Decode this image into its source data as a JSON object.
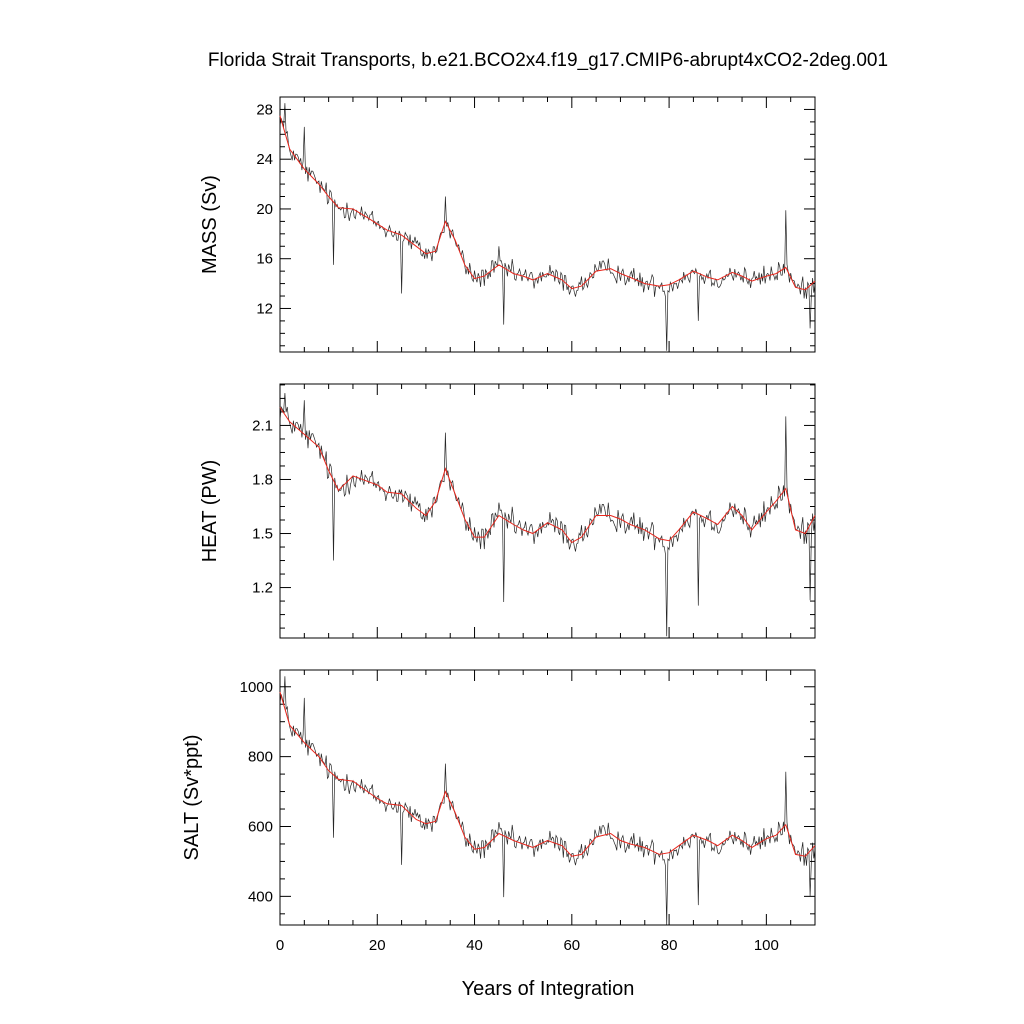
{
  "chart_data": [
    {
      "type": "line",
      "title": "Florida Strait Transports, b.e21.BCO2x4.f19_g17.CMIP6-abrupt4xCO2-2deg.001",
      "ylabel": "MASS (Sv)",
      "xlabel": "",
      "xlim": [
        0,
        110
      ],
      "ylim": [
        8.5,
        29
      ],
      "yticks": [
        12,
        16,
        20,
        24,
        28
      ],
      "xticks": [
        0,
        20,
        40,
        60,
        80,
        100
      ],
      "series": [
        {
          "name": "annual",
          "color": "#000000"
        },
        {
          "name": "running mean",
          "color": "#e8261c"
        }
      ],
      "smooth_points": [
        [
          0,
          27.5
        ],
        [
          2,
          24.8
        ],
        [
          5,
          23.2
        ],
        [
          8,
          22.0
        ],
        [
          10,
          21.0
        ],
        [
          12,
          20.1
        ],
        [
          15,
          20.0
        ],
        [
          18,
          19.3
        ],
        [
          20,
          18.8
        ],
        [
          22,
          18.3
        ],
        [
          25,
          17.9
        ],
        [
          28,
          17.0
        ],
        [
          30,
          16.4
        ],
        [
          32,
          16.6
        ],
        [
          34,
          19.0
        ],
        [
          36,
          17.5
        ],
        [
          38,
          15.5
        ],
        [
          40,
          14.4
        ],
        [
          42,
          14.6
        ],
        [
          45,
          15.5
        ],
        [
          48,
          14.8
        ],
        [
          50,
          14.6
        ],
        [
          52,
          14.3
        ],
        [
          55,
          14.8
        ],
        [
          58,
          14.3
        ],
        [
          60,
          13.6
        ],
        [
          62,
          13.8
        ],
        [
          65,
          15.0
        ],
        [
          68,
          15.2
        ],
        [
          70,
          14.8
        ],
        [
          72,
          14.5
        ],
        [
          75,
          14.0
        ],
        [
          78,
          13.8
        ],
        [
          80,
          13.9
        ],
        [
          82,
          14.3
        ],
        [
          85,
          15.0
        ],
        [
          88,
          14.5
        ],
        [
          90,
          14.3
        ],
        [
          93,
          14.9
        ],
        [
          95,
          14.6
        ],
        [
          97,
          14.2
        ],
        [
          100,
          14.6
        ],
        [
          102,
          14.8
        ],
        [
          104,
          15.3
        ],
        [
          106,
          13.7
        ],
        [
          108,
          13.5
        ],
        [
          110,
          14.2
        ]
      ],
      "noise_amplitude": 1.3,
      "spikes": [
        [
          1,
          28.5
        ],
        [
          5,
          26.6
        ],
        [
          11,
          15.5
        ],
        [
          25,
          13.2
        ],
        [
          34,
          21.0
        ],
        [
          45,
          17.0
        ],
        [
          46,
          10.7
        ],
        [
          79.5,
          8.6
        ],
        [
          86,
          11.0
        ],
        [
          104,
          19.9
        ],
        [
          109,
          10.4
        ]
      ]
    },
    {
      "type": "line",
      "ylabel": "HEAT (PW)",
      "xlabel": "",
      "xlim": [
        0,
        110
      ],
      "ylim": [
        0.92,
        2.33
      ],
      "yticks": [
        1.2,
        1.5,
        1.8,
        2.1
      ],
      "xticks": [
        0,
        20,
        40,
        60,
        80,
        100
      ],
      "series": [
        {
          "name": "annual",
          "color": "#000000"
        },
        {
          "name": "running mean",
          "color": "#e8261c"
        }
      ],
      "smooth_points": [
        [
          0,
          2.2
        ],
        [
          2,
          2.12
        ],
        [
          5,
          2.05
        ],
        [
          8,
          1.98
        ],
        [
          10,
          1.85
        ],
        [
          12,
          1.74
        ],
        [
          15,
          1.82
        ],
        [
          18,
          1.79
        ],
        [
          20,
          1.77
        ],
        [
          22,
          1.73
        ],
        [
          25,
          1.72
        ],
        [
          28,
          1.64
        ],
        [
          30,
          1.6
        ],
        [
          32,
          1.68
        ],
        [
          34,
          1.86
        ],
        [
          36,
          1.72
        ],
        [
          38,
          1.58
        ],
        [
          40,
          1.48
        ],
        [
          42,
          1.48
        ],
        [
          45,
          1.6
        ],
        [
          48,
          1.55
        ],
        [
          50,
          1.52
        ],
        [
          52,
          1.5
        ],
        [
          55,
          1.56
        ],
        [
          58,
          1.52
        ],
        [
          60,
          1.45
        ],
        [
          62,
          1.48
        ],
        [
          65,
          1.6
        ],
        [
          68,
          1.6
        ],
        [
          70,
          1.58
        ],
        [
          72,
          1.55
        ],
        [
          75,
          1.52
        ],
        [
          78,
          1.47
        ],
        [
          80,
          1.46
        ],
        [
          82,
          1.52
        ],
        [
          85,
          1.62
        ],
        [
          88,
          1.58
        ],
        [
          90,
          1.55
        ],
        [
          93,
          1.65
        ],
        [
          95,
          1.6
        ],
        [
          97,
          1.52
        ],
        [
          100,
          1.62
        ],
        [
          102,
          1.68
        ],
        [
          104,
          1.75
        ],
        [
          106,
          1.52
        ],
        [
          108,
          1.5
        ],
        [
          110,
          1.6
        ]
      ],
      "noise_amplitude": 0.11,
      "spikes": [
        [
          1,
          2.28
        ],
        [
          5,
          2.24
        ],
        [
          11,
          1.35
        ],
        [
          34,
          2.06
        ],
        [
          46,
          1.12
        ],
        [
          79.5,
          0.93
        ],
        [
          86,
          1.1
        ],
        [
          104,
          2.15
        ],
        [
          109,
          1.13
        ]
      ]
    },
    {
      "type": "line",
      "ylabel": "SALT (Sv*ppt)",
      "xlabel": "Years of Integration",
      "xlim": [
        0,
        110
      ],
      "ylim": [
        318,
        1048
      ],
      "yticks": [
        400,
        600,
        800,
        1000
      ],
      "xticks": [
        0,
        20,
        40,
        60,
        80,
        100
      ],
      "xticklabels": [
        "0",
        "20",
        "40",
        "60",
        "80",
        "100"
      ],
      "series": [
        {
          "name": "annual",
          "color": "#000000"
        },
        {
          "name": "running mean",
          "color": "#e8261c"
        }
      ],
      "smooth_points": [
        [
          0,
          985
        ],
        [
          2,
          890
        ],
        [
          5,
          840
        ],
        [
          8,
          800
        ],
        [
          10,
          760
        ],
        [
          12,
          735
        ],
        [
          15,
          730
        ],
        [
          18,
          700
        ],
        [
          20,
          680
        ],
        [
          22,
          665
        ],
        [
          25,
          660
        ],
        [
          28,
          620
        ],
        [
          30,
          608
        ],
        [
          32,
          615
        ],
        [
          34,
          700
        ],
        [
          36,
          640
        ],
        [
          38,
          570
        ],
        [
          40,
          535
        ],
        [
          42,
          540
        ],
        [
          45,
          580
        ],
        [
          48,
          560
        ],
        [
          50,
          550
        ],
        [
          52,
          540
        ],
        [
          55,
          560
        ],
        [
          58,
          545
        ],
        [
          60,
          515
        ],
        [
          62,
          520
        ],
        [
          65,
          570
        ],
        [
          68,
          580
        ],
        [
          70,
          560
        ],
        [
          72,
          550
        ],
        [
          75,
          540
        ],
        [
          78,
          520
        ],
        [
          80,
          525
        ],
        [
          82,
          545
        ],
        [
          85,
          575
        ],
        [
          88,
          560
        ],
        [
          90,
          545
        ],
        [
          93,
          575
        ],
        [
          95,
          560
        ],
        [
          97,
          540
        ],
        [
          100,
          565
        ],
        [
          102,
          575
        ],
        [
          104,
          605
        ],
        [
          106,
          520
        ],
        [
          108,
          515
        ],
        [
          110,
          545
        ]
      ],
      "noise_amplitude": 50,
      "spikes": [
        [
          1,
          1030
        ],
        [
          5,
          968
        ],
        [
          11,
          568
        ],
        [
          25,
          490
        ],
        [
          34,
          780
        ],
        [
          46,
          398
        ],
        [
          79.5,
          318
        ],
        [
          86,
          375
        ],
        [
          104,
          757
        ],
        [
          109,
          400
        ]
      ]
    }
  ]
}
